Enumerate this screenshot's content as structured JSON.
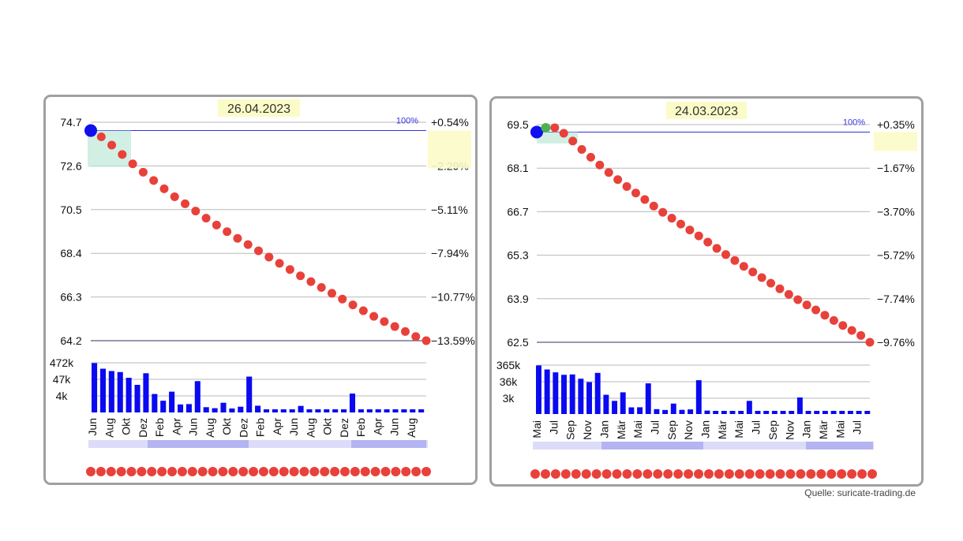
{
  "source": "Quelle: suricate-trading.de",
  "chart_data": [
    {
      "type": "line",
      "date": "26.04.2023",
      "y_ticks": [
        "74.7",
        "72.6",
        "70.5",
        "68.4",
        "66.3",
        "64.2"
      ],
      "y_tick_values": [
        74.7,
        72.6,
        70.5,
        68.4,
        66.3,
        64.2
      ],
      "pct_ticks": [
        "+0.54%",
        "−2.29%",
        "−5.11%",
        "−7.94%",
        "−10.77%",
        "−13.59%"
      ],
      "reference_label": "100%",
      "reference_value": 74.3,
      "ylim": [
        64.2,
        74.7
      ],
      "series": [
        {
          "values": [
            74.3,
            74.0,
            73.6,
            73.15,
            72.7,
            72.3,
            71.9,
            71.5,
            71.12,
            70.78,
            70.43,
            70.09,
            69.76,
            69.44,
            69.12,
            68.82,
            68.52,
            68.22,
            67.92,
            67.62,
            67.32,
            67.04,
            66.76,
            66.48,
            66.2,
            65.92,
            65.64,
            65.37,
            65.12,
            64.88,
            64.64,
            64.4,
            64.2
          ],
          "colors_note": "first point blue, rest red"
        }
      ],
      "volume_ticks": [
        "472k",
        "47k",
        "4k"
      ],
      "volume_values": [
        472000,
        200000,
        140000,
        120000,
        50000,
        17000,
        100000,
        4200,
        1500,
        6000,
        850,
        900,
        30000,
        560,
        480,
        1100,
        460,
        600,
        60000,
        700,
        340,
        330,
        320,
        320,
        680,
        320,
        320,
        310,
        300,
        300,
        4500,
        300,
        300,
        300,
        300,
        300,
        300,
        300,
        300
      ],
      "x_labels": [
        "Jun",
        "Aug",
        "Okt",
        "Dez",
        "Feb",
        "Apr",
        "Jun",
        "Aug",
        "Okt",
        "Dez",
        "Feb",
        "Apr",
        "Jun",
        "Aug",
        "Okt",
        "Dez",
        "Feb",
        "Apr",
        "Jun",
        "Aug"
      ]
    },
    {
      "type": "line",
      "date": "24.03.2023",
      "y_ticks": [
        "69.5",
        "68.1",
        "66.7",
        "65.3",
        "63.9",
        "62.5"
      ],
      "y_tick_values": [
        69.5,
        68.1,
        66.7,
        65.3,
        63.9,
        62.5
      ],
      "pct_ticks": [
        "+0.35%",
        "−1.67%",
        "−3.70%",
        "−5.72%",
        "−7.74%",
        "−9.76%"
      ],
      "reference_label": "100%",
      "reference_value": 69.26,
      "ylim": [
        62.5,
        69.5
      ],
      "series": [
        {
          "values": [
            69.26,
            69.4,
            69.4,
            69.22,
            68.97,
            68.7,
            68.45,
            68.2,
            67.96,
            67.73,
            67.51,
            67.3,
            67.09,
            66.88,
            66.68,
            66.49,
            66.3,
            66.11,
            65.92,
            65.72,
            65.52,
            65.32,
            65.13,
            64.94,
            64.76,
            64.58,
            64.4,
            64.22,
            64.04,
            63.87,
            63.7,
            63.54,
            63.37,
            63.2,
            63.04,
            62.88,
            62.72,
            62.5
          ],
          "colors_note": "first blue, next green, rest red"
        }
      ],
      "volume_ticks": [
        "365k",
        "36k",
        "3k"
      ],
      "volume_values": [
        365000,
        200000,
        130000,
        90000,
        95000,
        50000,
        30000,
        120000,
        4500,
        1800,
        6500,
        680,
        690,
        25000,
        520,
        460,
        1200,
        470,
        500,
        40000,
        420,
        400,
        390,
        380,
        380,
        1800,
        380,
        370,
        360,
        360,
        360,
        3000,
        330,
        330,
        330,
        330,
        330,
        330,
        330,
        330
      ],
      "x_labels": [
        "Mai",
        "Jul",
        "Sep",
        "Nov",
        "Jan",
        "Mär",
        "Mai",
        "Jul",
        "Sep",
        "Nov",
        "Jan",
        "Mär",
        "Mai",
        "Jul",
        "Sep",
        "Nov",
        "Jan",
        "Mär",
        "Mai",
        "Jul"
      ]
    }
  ]
}
